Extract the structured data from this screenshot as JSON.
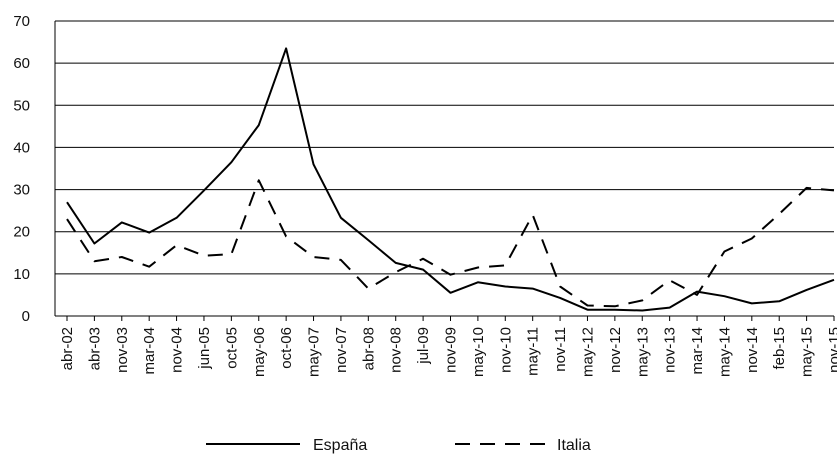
{
  "chart_data": {
    "type": "line",
    "title": "",
    "xlabel": "",
    "ylabel": "",
    "ylim": [
      0,
      70
    ],
    "yticks": [
      0,
      10,
      20,
      30,
      40,
      50,
      60,
      70
    ],
    "grid": "horizontal",
    "legend_position": "bottom",
    "categories": [
      "abr-02",
      "abr-03",
      "nov-03",
      "mar-04",
      "nov-04",
      "jun-05",
      "oct-05",
      "may-06",
      "oct-06",
      "may-07",
      "nov-07",
      "abr-08",
      "nov-08",
      "jul-09",
      "nov-09",
      "may-10",
      "nov-10",
      "may-11",
      "nov-11",
      "may-12",
      "nov-12",
      "may-13",
      "nov-13",
      "mar-14",
      "may-14",
      "nov-14",
      "feb-15",
      "may-15",
      "nov-15"
    ],
    "series": [
      {
        "name": "España",
        "style": "solid",
        "color": "#000000",
        "values": [
          27,
          17.2,
          22.2,
          19.8,
          23.3,
          29.8,
          36.5,
          45.3,
          63.5,
          36,
          23.3,
          18,
          12.6,
          11,
          5.5,
          8,
          7,
          6.5,
          4.3,
          1.5,
          1.5,
          1.3,
          2,
          5.8,
          4.7,
          3,
          3.5,
          6.2,
          8.6
        ]
      },
      {
        "name": "Italia",
        "style": "dashed",
        "color": "#000000",
        "values": [
          23,
          13,
          14,
          11.7,
          16.8,
          14.3,
          14.7,
          32.2,
          18.9,
          14,
          13.3,
          6.5,
          10.4,
          13.6,
          9.8,
          11.5,
          12,
          24,
          7,
          2.5,
          2.3,
          3.7,
          8.5,
          5,
          15.3,
          18.4,
          24.2,
          30.4,
          29.8
        ]
      }
    ]
  }
}
